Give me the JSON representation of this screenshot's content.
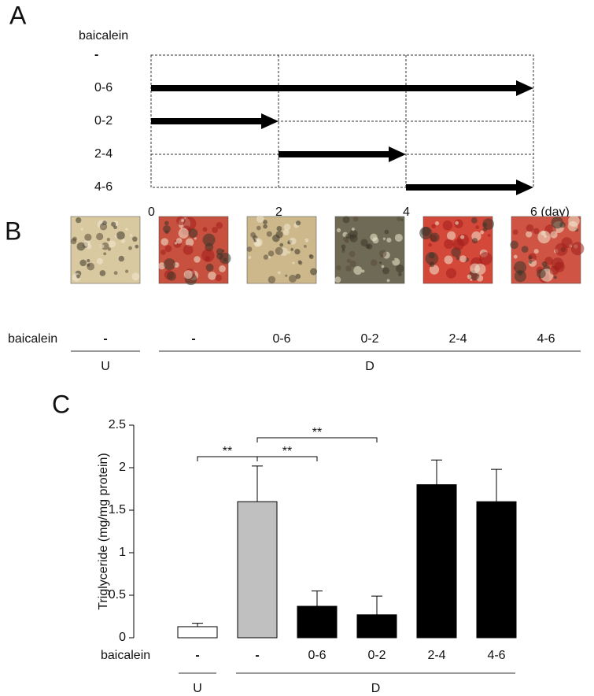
{
  "panel_a": {
    "label": "A",
    "row_header": "baicalein",
    "rows": [
      "-",
      "0-6",
      "0-2",
      "2-4",
      "4-6"
    ],
    "day_ticks": [
      0,
      2,
      4,
      {
        "value": 6,
        "label": "6 (day)"
      }
    ]
  },
  "panel_b": {
    "label": "B",
    "row_header": "baicalein",
    "conditions": [
      "-",
      "-",
      "0-6",
      "0-2",
      "2-4",
      "4-6"
    ],
    "groups": [
      "U",
      "D"
    ]
  },
  "chart_data": {
    "type": "bar",
    "panel_label": "C",
    "ylabel": "Triglyceride (mg/mg protein)",
    "row_header": "baicalein",
    "categories": [
      "-",
      "-",
      "0-6",
      "0-2",
      "2-4",
      "4-6"
    ],
    "values": [
      0.13,
      1.6,
      0.37,
      0.27,
      1.8,
      1.6
    ],
    "errors": [
      0.04,
      0.42,
      0.18,
      0.22,
      0.29,
      0.38
    ],
    "colors": [
      "#ffffff",
      "#c0c0c0",
      "#000000",
      "#000000",
      "#000000",
      "#000000"
    ],
    "groups": [
      "U",
      "D"
    ],
    "annotations": [
      "**",
      "**",
      "**"
    ],
    "ylim": [
      0,
      2.5
    ],
    "yticks": [
      0,
      0.5,
      1,
      1.5,
      2,
      2.5
    ]
  }
}
